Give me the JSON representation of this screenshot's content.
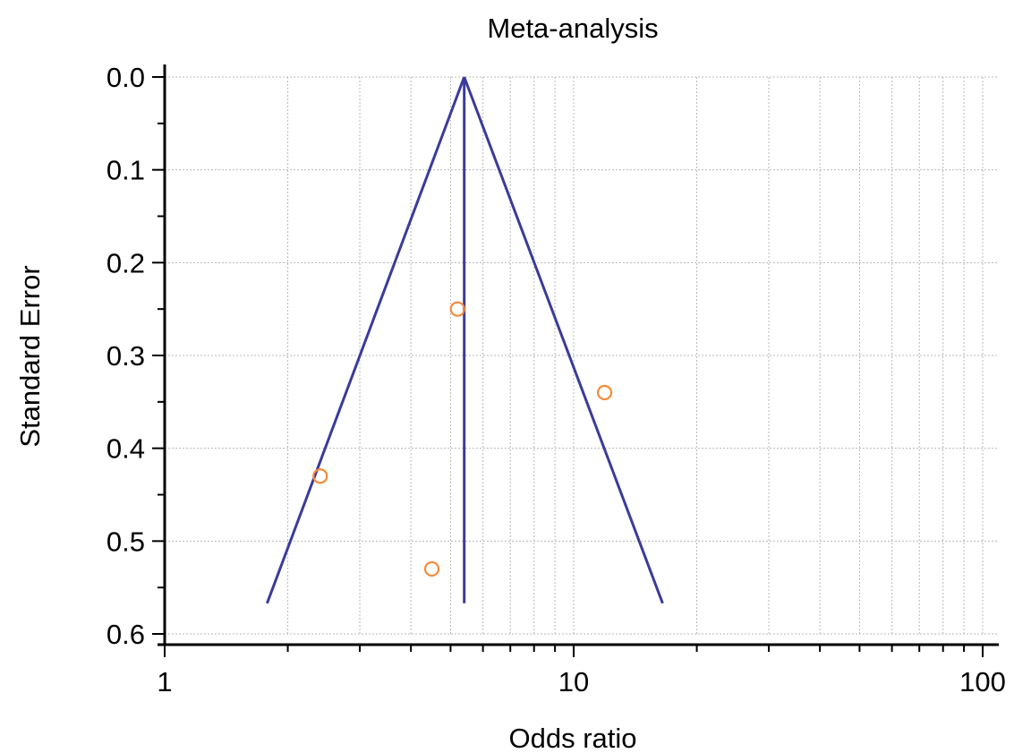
{
  "chart_data": {
    "type": "scatter",
    "subtype": "funnel-plot",
    "title": "Meta-analysis",
    "xlabel": "Odds ratio",
    "ylabel": "Standard Error",
    "x_scale": "log",
    "xlim": [
      1,
      100
    ],
    "ylim": [
      0.6,
      0.0
    ],
    "y_inverted": true,
    "grid": true,
    "x_ticks": [
      {
        "value": 1,
        "label": "1"
      },
      {
        "value": 10,
        "label": "10"
      },
      {
        "value": 100,
        "label": "100"
      }
    ],
    "y_ticks": [
      {
        "value": 0.0,
        "label": "0.0"
      },
      {
        "value": 0.1,
        "label": "0.1"
      },
      {
        "value": 0.2,
        "label": "0.2"
      },
      {
        "value": 0.3,
        "label": "0.3"
      },
      {
        "value": 0.4,
        "label": "0.4"
      },
      {
        "value": 0.5,
        "label": "0.5"
      },
      {
        "value": 0.6,
        "label": "0.6"
      }
    ],
    "pooled_estimate": 5.4,
    "funnel": {
      "apex": {
        "x": 5.4,
        "y": 0.0
      },
      "left_base": {
        "x": 1.78,
        "y": 0.567
      },
      "right_base": {
        "x": 16.5,
        "y": 0.567
      },
      "vertical_line_bottom": 0.567
    },
    "points": [
      {
        "x": 5.2,
        "y": 0.25
      },
      {
        "x": 11.9,
        "y": 0.34
      },
      {
        "x": 2.4,
        "y": 0.43
      },
      {
        "x": 4.5,
        "y": 0.53
      }
    ],
    "colors": {
      "funnel": "#3b3b9a",
      "points": "#f58a3a",
      "grid": "#b8b8b8",
      "axis": "#000000"
    }
  }
}
